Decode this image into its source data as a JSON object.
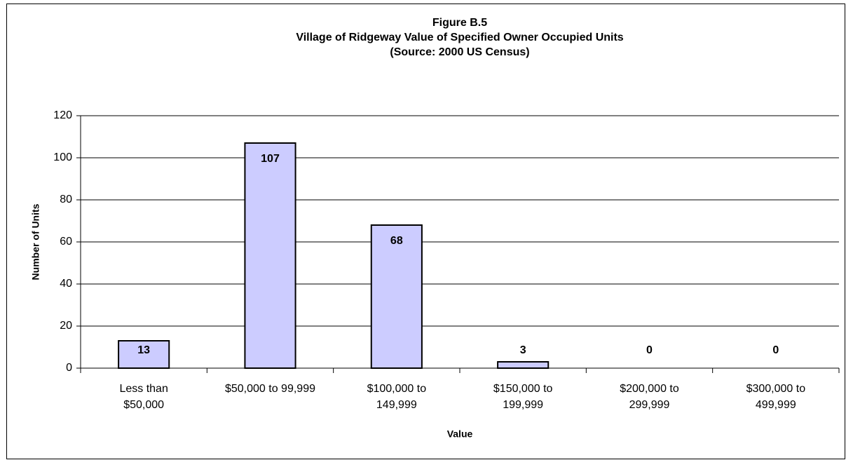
{
  "chart_data": {
    "type": "bar",
    "title": [
      "Figure B.5",
      "Village of Ridgeway Value of Specified Owner Occupied Units",
      "(Source:  2000 US Census)"
    ],
    "x_label": "Value",
    "y_label": "Number of Units",
    "categories": [
      [
        "Less than",
        "$50,000"
      ],
      [
        "$50,000 to 99,999"
      ],
      [
        "$100,000 to",
        "149,999"
      ],
      [
        "$150,000 to",
        "199,999"
      ],
      [
        "$200,000 to",
        "299,999"
      ],
      [
        "$300,000 to",
        "499,999"
      ]
    ],
    "values": [
      13,
      107,
      68,
      3,
      0,
      0
    ],
    "color": "#ccccff",
    "ylim": [
      0,
      120
    ],
    "yticks": [
      0,
      20,
      40,
      60,
      80,
      100,
      120
    ],
    "grid": true
  }
}
